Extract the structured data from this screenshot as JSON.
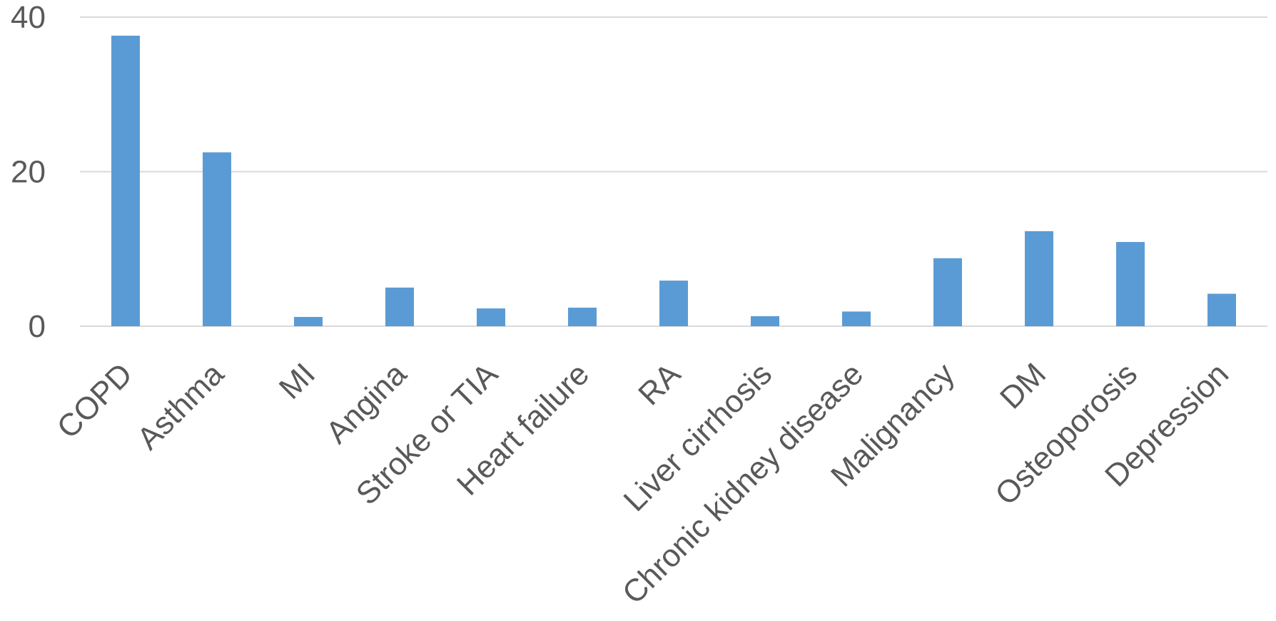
{
  "chart_data": {
    "type": "bar",
    "categories": [
      "COPD",
      "Asthma",
      "MI",
      "Angina",
      "Stroke or TIA",
      "Heart failure",
      "RA",
      "Liver cirrhosis",
      "Chronic kidney disease",
      "Malignancy",
      "DM",
      "Osteoporosis",
      "Depression"
    ],
    "series": [
      {
        "values": [
          37.6,
          22.5,
          1.2,
          5.0,
          2.3,
          2.4,
          5.9,
          1.3,
          1.9,
          8.8,
          12.3,
          10.9,
          4.2
        ]
      }
    ],
    "yticks": [
      "0",
      "20",
      "40"
    ],
    "ylim": [
      0,
      40
    ],
    "title": "",
    "xlabel": "",
    "ylabel": "",
    "grid": true,
    "legend": "none",
    "colors": {
      "bar": "#5b9bd5",
      "grid": "#d9d9d9",
      "text": "#595959"
    }
  }
}
